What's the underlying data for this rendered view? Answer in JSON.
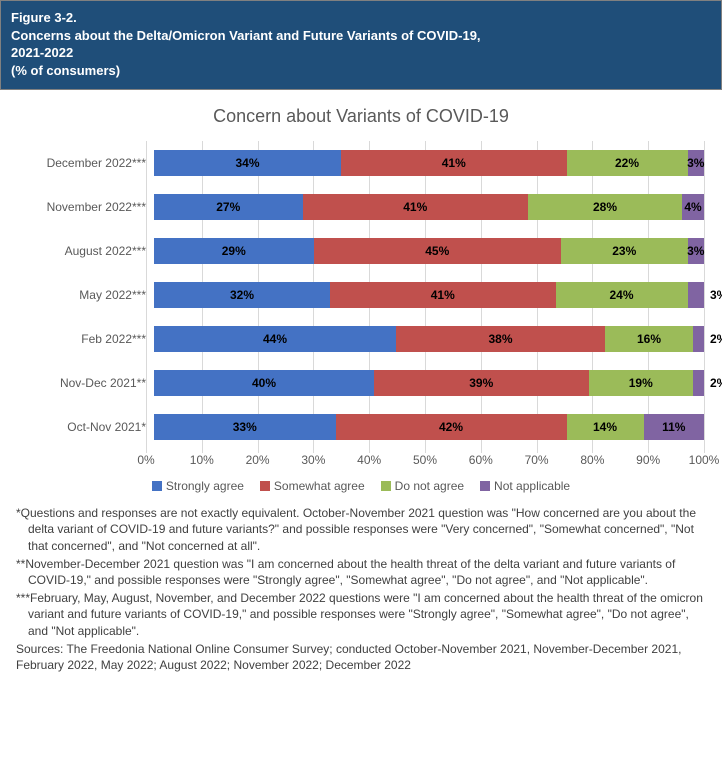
{
  "header": {
    "line1": "Figure 3-2.",
    "line2": "Concerns about the Delta/Omicron Variant and Future Variants of COVID-19,",
    "line3": "2021-2022",
    "line4": "(% of consumers)"
  },
  "chart": {
    "type": "stacked-bar-horizontal",
    "title": "Concern about Variants of COVID-19",
    "title_fontsize": 18,
    "title_color": "#595959",
    "label_fontsize": 12,
    "label_color": "#595959",
    "value_fontsize": 12,
    "background_color": "#ffffff",
    "grid_color": "#d9d9d9",
    "xlim": [
      0,
      100
    ],
    "xtick_step": 10,
    "xticks": [
      "0%",
      "10%",
      "20%",
      "30%",
      "40%",
      "50%",
      "60%",
      "70%",
      "80%",
      "90%",
      "100%"
    ],
    "series": [
      {
        "key": "strongly",
        "label": "Strongly agree",
        "color": "#4472c4"
      },
      {
        "key": "somewhat",
        "label": "Somewhat agree",
        "color": "#c0504d"
      },
      {
        "key": "donot",
        "label": "Do not agree",
        "color": "#9bbb59"
      },
      {
        "key": "na",
        "label": "Not applicable",
        "color": "#8064a2"
      }
    ],
    "categories": [
      {
        "label": "December 2022***",
        "strongly": 34,
        "somewhat": 41,
        "donot": 22,
        "na": 3,
        "na_outside": false
      },
      {
        "label": "November 2022***",
        "strongly": 27,
        "somewhat": 41,
        "donot": 28,
        "na": 4,
        "na_outside": false
      },
      {
        "label": "August 2022***",
        "strongly": 29,
        "somewhat": 45,
        "donot": 23,
        "na": 3,
        "na_outside": false
      },
      {
        "label": "May 2022***",
        "strongly": 32,
        "somewhat": 41,
        "donot": 24,
        "na": 3,
        "na_outside": true
      },
      {
        "label": "Feb 2022***",
        "strongly": 44,
        "somewhat": 38,
        "donot": 16,
        "na": 2,
        "na_outside": true
      },
      {
        "label": "Nov-Dec 2021**",
        "strongly": 40,
        "somewhat": 39,
        "donot": 19,
        "na": 2,
        "na_outside": true
      },
      {
        "label": "Oct-Nov 2021*",
        "strongly": 33,
        "somewhat": 42,
        "donot": 14,
        "na": 11,
        "na_outside": false
      }
    ]
  },
  "footnotes": {
    "n1": "*Questions and responses are not exactly equivalent. October-November 2021 question was \"How concerned are you about the delta variant of COVID-19 and future variants?\" and possible responses were \"Very concerned\", \"Somewhat concerned\", \"Not that concerned\", and \"Not concerned at all\".",
    "n2": "**November-December 2021 question was \"I am concerned about the health threat of the delta variant and future variants of COVID-19,\" and possible responses were \"Strongly agree\", \"Somewhat agree\", \"Do not agree\", and \"Not applicable\".",
    "n3": "***February, May, August, November, and December 2022 questions were \"I am concerned about the health threat of the omicron variant and future variants of COVID-19,\" and possible responses were \"Strongly agree\", \"Somewhat agree\", \"Do not agree\", and \"Not applicable\".",
    "src": "Sources: The Freedonia National Online Consumer Survey; conducted October-November 2021, November-December 2021, February 2022, May 2022; August 2022; November 2022; December 2022"
  }
}
